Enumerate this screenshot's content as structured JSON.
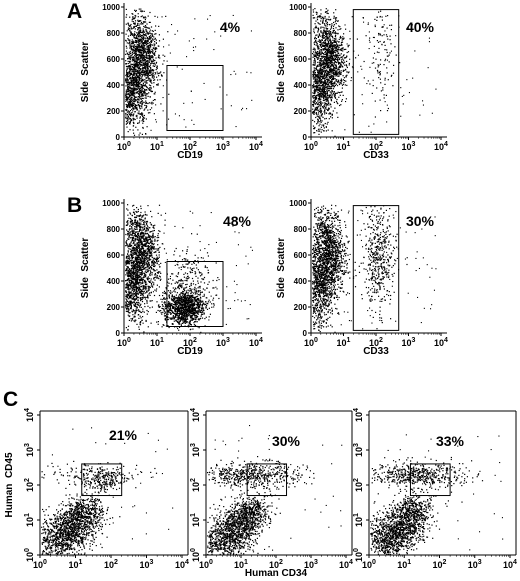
{
  "figure": {
    "panel_letters": [
      "A",
      "B",
      "C"
    ]
  },
  "chart_data": [
    {
      "type": "scatter",
      "panel": "A",
      "xlabel": "CD19",
      "ylabel": "Side Scatter",
      "x_scale": "log",
      "x_ticks": [
        "10^0",
        "10^1",
        "10^2",
        "10^3",
        "10^4"
      ],
      "x_range": [
        1,
        10000
      ],
      "y_ticks": [
        "0",
        "200",
        "400",
        "600",
        "800",
        "1000"
      ],
      "y_range": [
        0,
        1000
      ],
      "gate": {
        "x": [
          20,
          1000
        ],
        "y": [
          50,
          550
        ]
      },
      "gate_label": "4%"
    },
    {
      "type": "scatter",
      "panel": "A",
      "xlabel": "CD33",
      "ylabel": "Side Scatter",
      "x_scale": "log",
      "x_ticks": [
        "10^0",
        "10^1",
        "10^2",
        "10^3",
        "10^4"
      ],
      "x_range": [
        1,
        10000
      ],
      "y_ticks": [
        "0",
        "200",
        "400",
        "600",
        "800",
        "1000"
      ],
      "y_range": [
        0,
        1000
      ],
      "gate": {
        "x": [
          20,
          500
        ],
        "y": [
          20,
          980
        ]
      },
      "gate_label": "40%"
    },
    {
      "type": "scatter",
      "panel": "B",
      "xlabel": "CD19",
      "ylabel": "Side Scatter",
      "x_scale": "log",
      "x_ticks": [
        "10^0",
        "10^1",
        "10^2",
        "10^3",
        "10^4"
      ],
      "x_range": [
        1,
        10000
      ],
      "y_ticks": [
        "0",
        "200",
        "400",
        "600",
        "800",
        "1000"
      ],
      "y_range": [
        0,
        1000
      ],
      "gate": {
        "x": [
          20,
          1000
        ],
        "y": [
          50,
          550
        ]
      },
      "gate_label": "48%"
    },
    {
      "type": "scatter",
      "panel": "B",
      "xlabel": "CD33",
      "ylabel": "Side Scatter",
      "x_scale": "log",
      "x_ticks": [
        "10^0",
        "10^1",
        "10^2",
        "10^3",
        "10^4"
      ],
      "x_range": [
        1,
        10000
      ],
      "y_ticks": [
        "0",
        "200",
        "400",
        "600",
        "800",
        "1000"
      ],
      "y_range": [
        0,
        1000
      ],
      "gate": {
        "x": [
          20,
          500
        ],
        "y": [
          20,
          980
        ]
      },
      "gate_label": "30%"
    },
    {
      "type": "scatter",
      "panel": "C",
      "xlabel": "",
      "ylabel": "Human CD45",
      "x_scale": "log",
      "y_scale": "log",
      "x_ticks": [
        "10^0",
        "10^1",
        "10^2",
        "10^3",
        "10^4"
      ],
      "x_range": [
        1,
        10000
      ],
      "y_ticks": [
        "10^0",
        "10^1",
        "10^2",
        "10^3",
        "10^4"
      ],
      "y_range": [
        1,
        10000
      ],
      "gate": {
        "x": [
          15,
          200
        ],
        "y": [
          50,
          400
        ]
      },
      "gate_label": "21%"
    },
    {
      "type": "scatter",
      "panel": "C",
      "xlabel": "Human CD34",
      "ylabel": "",
      "x_scale": "log",
      "y_scale": "log",
      "x_ticks": [
        "10^0",
        "10^1",
        "10^2",
        "10^3",
        "10^4"
      ],
      "x_range": [
        1,
        10000
      ],
      "y_ticks": [
        "10^0",
        "10^1",
        "10^2",
        "10^3",
        "10^4"
      ],
      "y_range": [
        1,
        10000
      ],
      "gate": {
        "x": [
          15,
          200
        ],
        "y": [
          50,
          400
        ]
      },
      "gate_label": "30%"
    },
    {
      "type": "scatter",
      "panel": "C",
      "xlabel": "",
      "ylabel": "",
      "x_scale": "log",
      "y_scale": "log",
      "x_ticks": [
        "10^0",
        "10^1",
        "10^2",
        "10^3",
        "10^4"
      ],
      "x_range": [
        1,
        10000
      ],
      "y_ticks": [
        "10^0",
        "10^1",
        "10^2",
        "10^3",
        "10^4"
      ],
      "y_range": [
        1,
        10000
      ],
      "gate": {
        "x": [
          15,
          200
        ],
        "y": [
          50,
          400
        ]
      },
      "gate_label": "33%"
    }
  ]
}
